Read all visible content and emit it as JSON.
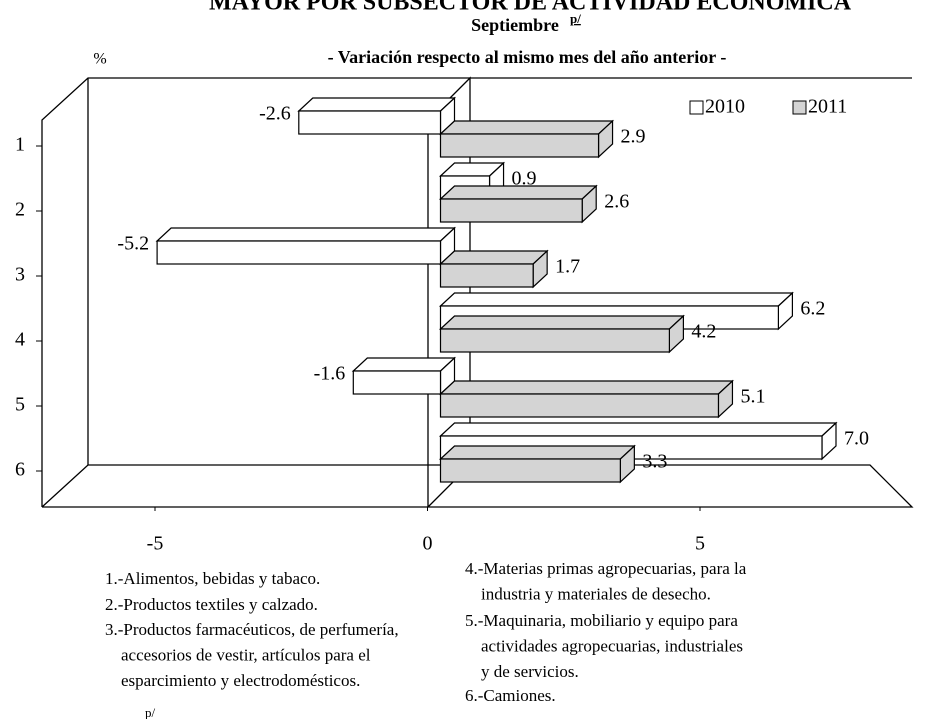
{
  "chart_data": {
    "type": "bar3d_horizontal",
    "title": "MAYOR POR SUBSECTOR DE ACTIVIDAD ECONÓMICA",
    "subtitle": "Septiembre",
    "subtitle_mark": "p/",
    "subtitle2": "- Variación respecto al mismo mes del año anterior -",
    "unit_label": "%",
    "categories": [
      "1",
      "2",
      "3",
      "4",
      "5",
      "6"
    ],
    "series": [
      {
        "name": "2010",
        "color": "#ffffff",
        "values": [
          -2.6,
          0.9,
          -5.2,
          6.2,
          -1.6,
          7.0
        ],
        "value_labels": [
          "-2.6",
          "0.9",
          "-5.2",
          "6.2",
          "-1.6",
          "7.0"
        ]
      },
      {
        "name": "2011",
        "color": "#d4d4d4",
        "values": [
          2.9,
          2.6,
          1.7,
          4.2,
          5.1,
          3.3
        ],
        "value_labels": [
          "2.9",
          "2.6",
          "1.7",
          "4.2",
          "5.1",
          "3.3"
        ]
      }
    ],
    "xlim": [
      -7,
      9
    ],
    "xticks": [
      -5,
      0,
      5
    ],
    "legend": "top-right",
    "notes": [
      {
        "lines": [
          "1.-Alimentos, bebidas y tabaco."
        ]
      },
      {
        "lines": [
          "2.-Productos textiles y calzado."
        ]
      },
      {
        "lines": [
          "3.-Productos farmacéuticos, de perfumería,",
          "accesorios de vestir, artículos para el",
          "esparcimiento y electrodomésticos."
        ]
      },
      {
        "lines": [
          "4.-Materias primas agropecuarias, para la",
          "industria y materiales de desecho."
        ]
      },
      {
        "lines": [
          "5.-Maquinaria, mobiliario y equipo para",
          "actividades agropecuarias, industriales",
          "y de servicios."
        ]
      },
      {
        "lines": [
          "6.-Camiones."
        ]
      }
    ],
    "footnote": "p/"
  }
}
